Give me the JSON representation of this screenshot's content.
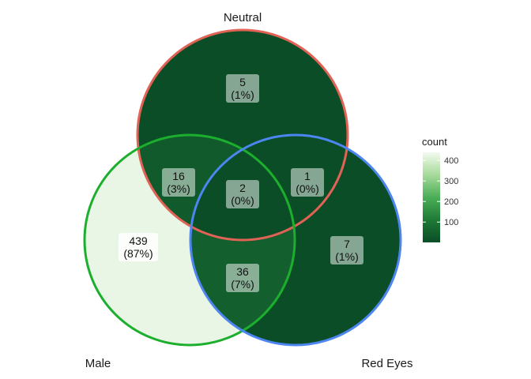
{
  "chart_data": {
    "type": "venn",
    "sets": [
      {
        "name": "Neutral",
        "color": "#E06356"
      },
      {
        "name": "Male",
        "color": "#1CAF2E"
      },
      {
        "name": "Red Eyes",
        "color": "#4D86F0"
      }
    ],
    "regions": [
      {
        "id": "neutral-only",
        "sets": [
          "Neutral"
        ],
        "count": "5",
        "percent": "(1%)",
        "value": 5,
        "fill": "#0B4D27"
      },
      {
        "id": "male-only",
        "sets": [
          "Male"
        ],
        "count": "439",
        "percent": "(87%)",
        "value": 439,
        "fill": "#EAF6E5"
      },
      {
        "id": "redeyes-only",
        "sets": [
          "Red Eyes"
        ],
        "count": "7",
        "percent": "(1%)",
        "value": 7,
        "fill": "#0B4D27"
      },
      {
        "id": "neutral-male",
        "sets": [
          "Neutral",
          "Male"
        ],
        "count": "16",
        "percent": "(3%)",
        "value": 16,
        "fill": "#105A2B"
      },
      {
        "id": "neutral-redeyes",
        "sets": [
          "Neutral",
          "Red Eyes"
        ],
        "count": "1",
        "percent": "(0%)",
        "value": 1,
        "fill": "#0B4D27"
      },
      {
        "id": "male-redeyes",
        "sets": [
          "Male",
          "Red Eyes"
        ],
        "count": "36",
        "percent": "(7%)",
        "value": 36,
        "fill": "#135F2E"
      },
      {
        "id": "all-three",
        "sets": [
          "Neutral",
          "Male",
          "Red Eyes"
        ],
        "count": "2",
        "percent": "(0%)",
        "value": 2,
        "fill": "#0B4D27"
      }
    ],
    "legend": {
      "title": "count",
      "ticks": [
        "400",
        "300",
        "200",
        "100"
      ],
      "tick_values": [
        400,
        300,
        200,
        100
      ],
      "range": [
        1,
        439
      ],
      "colors": [
        "#0B4D27",
        "#1E7A35",
        "#4BAE57",
        "#A7DA9A",
        "#F2FAEE"
      ]
    }
  }
}
